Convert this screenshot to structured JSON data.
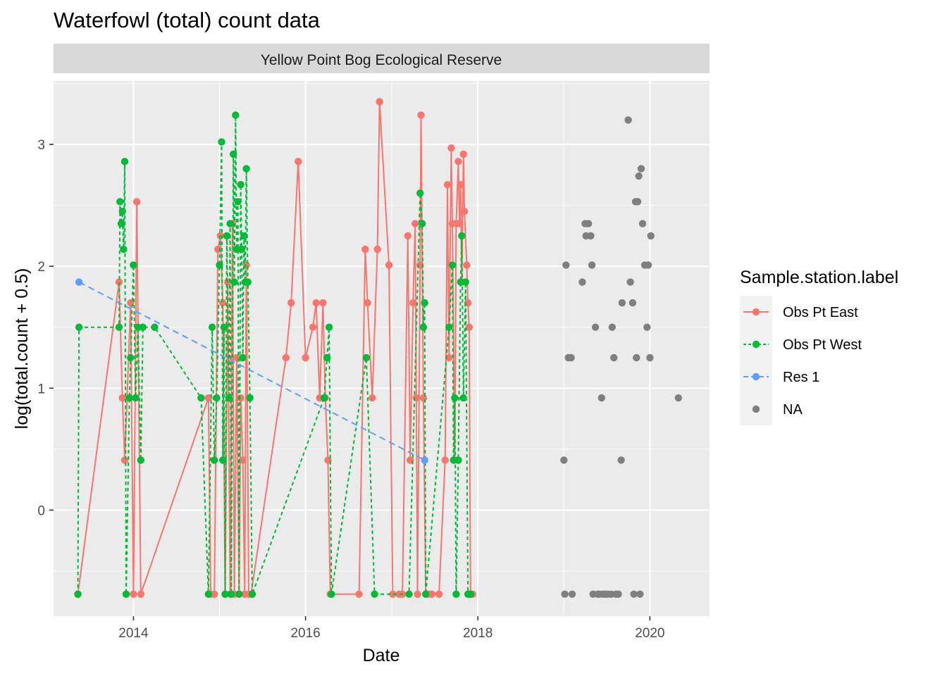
{
  "chart_data": {
    "type": "line",
    "title": "Waterfowl (total) count data",
    "facet_label": "Yellow Point Bog Ecological Reserve",
    "xlabel": "Date",
    "ylabel": "log(total.count + 0.5)",
    "xlim": [
      "2013-01-27",
      "2020-09-10"
    ],
    "ylim": [
      -0.87,
      3.52
    ],
    "x_ticks": [
      "2014",
      "2016",
      "2018",
      "2020"
    ],
    "y_ticks": [
      "0",
      "1",
      "2",
      "3"
    ],
    "grid": true,
    "legend": {
      "title": "Sample.station.label",
      "position": "right",
      "entries": [
        "Obs Pt East",
        "Obs Pt West",
        "Res 1",
        "NA"
      ]
    },
    "series": [
      {
        "name": "Obs Pt East",
        "color": "#F8766D",
        "line": "solid",
        "points": [
          [
            "2013-05-10",
            -0.69
          ],
          [
            "2013-11-01",
            1.87
          ],
          [
            "2013-11-15",
            0.92
          ],
          [
            "2013-11-25",
            0.41
          ],
          [
            "2013-12-20",
            1.7
          ],
          [
            "2014-01-01",
            -0.69
          ],
          [
            "2014-01-15",
            2.53
          ],
          [
            "2014-02-01",
            -0.69
          ],
          [
            "2014-11-15",
            0.92
          ],
          [
            "2014-11-25",
            -0.69
          ],
          [
            "2014-12-10",
            -0.69
          ],
          [
            "2014-12-25",
            2.14
          ],
          [
            "2015-01-05",
            2.25
          ],
          [
            "2015-01-15",
            1.7
          ],
          [
            "2015-01-25",
            -0.69
          ],
          [
            "2015-02-05",
            1.87
          ],
          [
            "2015-02-15",
            -0.69
          ],
          [
            "2015-02-25",
            2.35
          ],
          [
            "2015-03-05",
            -0.69
          ],
          [
            "2015-03-15",
            1.25
          ],
          [
            "2015-03-25",
            -0.69
          ],
          [
            "2015-04-01",
            0.92
          ],
          [
            "2015-04-10",
            0.41
          ],
          [
            "2015-04-18",
            -0.69
          ],
          [
            "2015-04-25",
            2.01
          ],
          [
            "2015-05-05",
            -0.69
          ],
          [
            "2015-05-15",
            -0.69
          ],
          [
            "2015-10-10",
            1.25
          ],
          [
            "2015-11-01",
            1.7
          ],
          [
            "2015-12-01",
            2.86
          ],
          [
            "2016-01-01",
            1.25
          ],
          [
            "2016-02-01",
            1.5
          ],
          [
            "2016-02-15",
            1.7
          ],
          [
            "2016-03-01",
            0.92
          ],
          [
            "2016-03-15",
            1.7
          ],
          [
            "2016-03-25",
            0.92
          ],
          [
            "2016-04-05",
            0.41
          ],
          [
            "2016-04-15",
            -0.69
          ],
          [
            "2016-08-15",
            -0.69
          ],
          [
            "2016-09-10",
            2.14
          ],
          [
            "2016-09-20",
            1.7
          ],
          [
            "2016-10-10",
            0.92
          ],
          [
            "2016-11-01",
            2.14
          ],
          [
            "2016-11-10",
            3.35
          ],
          [
            "2016-12-20",
            2.01
          ],
          [
            "2017-01-05",
            -0.69
          ],
          [
            "2017-02-01",
            -0.69
          ],
          [
            "2017-02-15",
            -0.69
          ],
          [
            "2017-03-10",
            2.25
          ],
          [
            "2017-03-20",
            0.41
          ],
          [
            "2017-04-01",
            1.7
          ],
          [
            "2017-04-10",
            2.35
          ],
          [
            "2017-04-15",
            0.92
          ],
          [
            "2017-04-20",
            -0.69
          ],
          [
            "2017-05-01",
            2.01
          ],
          [
            "2017-05-05",
            3.24
          ],
          [
            "2017-05-15",
            0.92
          ],
          [
            "2017-05-25",
            -0.69
          ],
          [
            "2017-06-05",
            -0.69
          ],
          [
            "2017-06-20",
            -0.69
          ],
          [
            "2017-07-20",
            -0.69
          ],
          [
            "2017-08-15",
            0.41
          ],
          [
            "2017-08-25",
            2.67
          ],
          [
            "2017-09-01",
            1.25
          ],
          [
            "2017-09-10",
            2.97
          ],
          [
            "2017-09-15",
            2.35
          ],
          [
            "2017-09-25",
            0.41
          ],
          [
            "2017-10-01",
            2.35
          ],
          [
            "2017-10-10",
            2.86
          ],
          [
            "2017-10-15",
            2.35
          ],
          [
            "2017-10-20",
            2.67
          ],
          [
            "2017-10-25",
            1.87
          ],
          [
            "2017-11-01",
            2.92
          ],
          [
            "2017-11-05",
            2.45
          ],
          [
            "2017-11-15",
            2.01
          ],
          [
            "2017-11-20",
            1.7
          ],
          [
            "2017-11-25",
            1.5
          ],
          [
            "2017-12-01",
            -0.69
          ],
          [
            "2017-12-10",
            -0.69
          ]
        ]
      },
      {
        "name": "Obs Pt West",
        "color": "#00BA38",
        "line": "dotted",
        "points": [
          [
            "2013-05-10",
            -0.69
          ],
          [
            "2013-05-15",
            1.5
          ],
          [
            "2013-11-01",
            1.5
          ],
          [
            "2013-11-05",
            2.53
          ],
          [
            "2013-11-10",
            2.35
          ],
          [
            "2013-11-15",
            2.45
          ],
          [
            "2013-11-20",
            2.14
          ],
          [
            "2013-11-25",
            2.86
          ],
          [
            "2013-12-01",
            -0.69
          ],
          [
            "2013-12-15",
            0.92
          ],
          [
            "2013-12-20",
            1.25
          ],
          [
            "2014-01-01",
            2.01
          ],
          [
            "2014-01-10",
            0.92
          ],
          [
            "2014-01-20",
            1.5
          ],
          [
            "2014-02-01",
            0.41
          ],
          [
            "2014-02-10",
            1.5
          ],
          [
            "2014-04-01",
            1.5
          ],
          [
            "2014-10-15",
            0.92
          ],
          [
            "2014-11-15",
            -0.69
          ],
          [
            "2014-12-01",
            1.5
          ],
          [
            "2014-12-10",
            0.41
          ],
          [
            "2014-12-20",
            0.92
          ],
          [
            "2015-01-01",
            2.01
          ],
          [
            "2015-01-10",
            3.02
          ],
          [
            "2015-01-15",
            0.41
          ],
          [
            "2015-01-20",
            1.5
          ],
          [
            "2015-01-25",
            -0.69
          ],
          [
            "2015-02-01",
            2.25
          ],
          [
            "2015-02-10",
            0.92
          ],
          [
            "2015-02-15",
            2.35
          ],
          [
            "2015-02-20",
            -0.69
          ],
          [
            "2015-03-01",
            2.92
          ],
          [
            "2015-03-05",
            1.87
          ],
          [
            "2015-03-10",
            3.24
          ],
          [
            "2015-03-15",
            2.14
          ],
          [
            "2015-03-20",
            2.53
          ],
          [
            "2015-03-25",
            -0.69
          ],
          [
            "2015-04-01",
            2.67
          ],
          [
            "2015-04-05",
            2.14
          ],
          [
            "2015-04-10",
            1.25
          ],
          [
            "2015-04-15",
            2.25
          ],
          [
            "2015-04-20",
            1.87
          ],
          [
            "2015-04-25",
            2.8
          ],
          [
            "2015-05-01",
            1.87
          ],
          [
            "2015-05-10",
            0.92
          ],
          [
            "2015-05-20",
            -0.69
          ],
          [
            "2016-03-20",
            0.92
          ],
          [
            "2016-04-01",
            1.25
          ],
          [
            "2016-04-10",
            1.5
          ],
          [
            "2016-04-20",
            -0.69
          ],
          [
            "2016-09-15",
            1.25
          ],
          [
            "2016-10-20",
            -0.69
          ],
          [
            "2017-03-15",
            -0.69
          ],
          [
            "2017-05-01",
            2.6
          ],
          [
            "2017-05-10",
            2.35
          ],
          [
            "2017-05-15",
            1.5
          ],
          [
            "2017-05-20",
            1.7
          ],
          [
            "2017-05-25",
            -0.69
          ],
          [
            "2017-09-01",
            1.5
          ],
          [
            "2017-09-15",
            2.01
          ],
          [
            "2017-09-20",
            0.41
          ],
          [
            "2017-09-25",
            0.92
          ],
          [
            "2017-10-01",
            -0.69
          ],
          [
            "2017-10-10",
            0.41
          ],
          [
            "2017-10-20",
            1.87
          ],
          [
            "2017-10-25",
            2.25
          ],
          [
            "2017-11-01",
            0.92
          ],
          [
            "2017-11-10",
            1.87
          ],
          [
            "2017-11-20",
            -0.69
          ],
          [
            "2017-12-01",
            -0.69
          ]
        ]
      },
      {
        "name": "Res 1",
        "color": "#619CFF",
        "line": "dashed",
        "points": [
          [
            "2013-05-15",
            1.87
          ],
          [
            "2017-05-20",
            0.41
          ]
        ]
      },
      {
        "name": "NA",
        "color": "#7F7F7F",
        "line": "none",
        "points": [
          [
            "2019-01-01",
            0.41
          ],
          [
            "2019-01-05",
            -0.69
          ],
          [
            "2019-01-10",
            2.01
          ],
          [
            "2019-01-20",
            1.25
          ],
          [
            "2019-02-01",
            1.25
          ],
          [
            "2019-02-05",
            -0.69
          ],
          [
            "2019-03-20",
            1.87
          ],
          [
            "2019-04-01",
            2.35
          ],
          [
            "2019-04-05",
            2.25
          ],
          [
            "2019-04-15",
            2.35
          ],
          [
            "2019-04-25",
            2.25
          ],
          [
            "2019-04-30",
            2.01
          ],
          [
            "2019-05-05",
            -0.69
          ],
          [
            "2019-05-15",
            1.5
          ],
          [
            "2019-05-25",
            -0.69
          ],
          [
            "2019-06-01",
            -0.69
          ],
          [
            "2019-06-10",
            0.92
          ],
          [
            "2019-06-15",
            -0.69
          ],
          [
            "2019-06-25",
            -0.69
          ],
          [
            "2019-07-05",
            -0.69
          ],
          [
            "2019-07-20",
            -0.69
          ],
          [
            "2019-07-25",
            1.5
          ],
          [
            "2019-08-01",
            1.25
          ],
          [
            "2019-08-10",
            -0.69
          ],
          [
            "2019-08-20",
            -0.69
          ],
          [
            "2019-09-01",
            0.41
          ],
          [
            "2019-09-05",
            1.7
          ],
          [
            "2019-10-01",
            3.2
          ],
          [
            "2019-10-10",
            1.87
          ],
          [
            "2019-10-20",
            1.7
          ],
          [
            "2019-10-25",
            -0.69
          ],
          [
            "2019-11-01",
            2.53
          ],
          [
            "2019-11-05",
            1.25
          ],
          [
            "2019-11-10",
            2.53
          ],
          [
            "2019-11-15",
            2.74
          ],
          [
            "2019-11-20",
            -0.69
          ],
          [
            "2019-11-25",
            2.8
          ],
          [
            "2019-12-01",
            2.35
          ],
          [
            "2019-12-10",
            2.01
          ],
          [
            "2019-12-20",
            1.5
          ],
          [
            "2019-12-25",
            2.01
          ],
          [
            "2020-01-01",
            1.25
          ],
          [
            "2020-01-05",
            2.25
          ],
          [
            "2020-05-01",
            0.92
          ]
        ]
      }
    ]
  }
}
